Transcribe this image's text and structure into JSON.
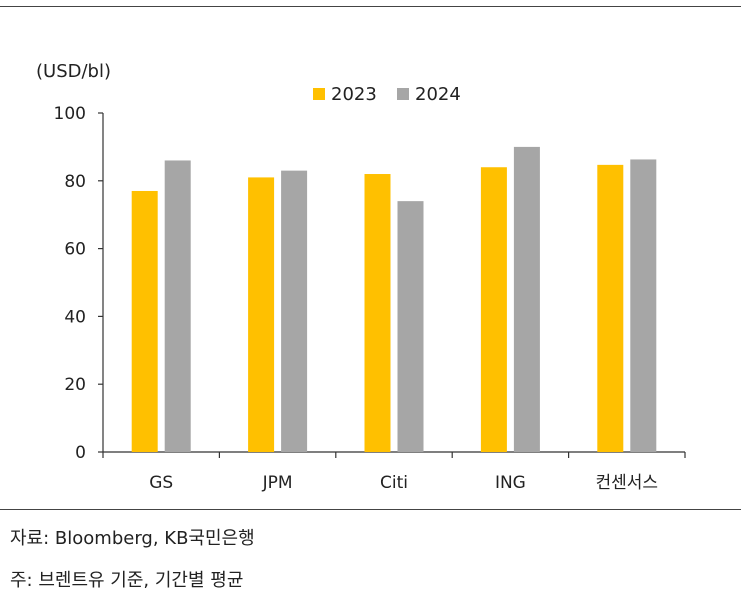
{
  "chart_data": {
    "type": "bar",
    "unit_label": "(USD/bl)",
    "categories": [
      "GS",
      "JPM",
      "Citi",
      "ING",
      "컨센서스"
    ],
    "series": [
      {
        "name": "2023",
        "color": "#FFC000",
        "values": [
          77,
          81,
          82,
          84,
          84.7
        ]
      },
      {
        "name": "2024",
        "color": "#A6A6A6",
        "values": [
          86,
          83,
          74,
          90,
          86.3
        ]
      }
    ],
    "ylim": [
      0,
      100
    ],
    "yticks": [
      0,
      20,
      40,
      60,
      80,
      100
    ],
    "legend_position": "top-center",
    "grid": false
  },
  "footnotes": {
    "source": "자료: Bloomberg, KB국민은행",
    "note": "주: 브렌트유 기준, 기간별 평균"
  }
}
